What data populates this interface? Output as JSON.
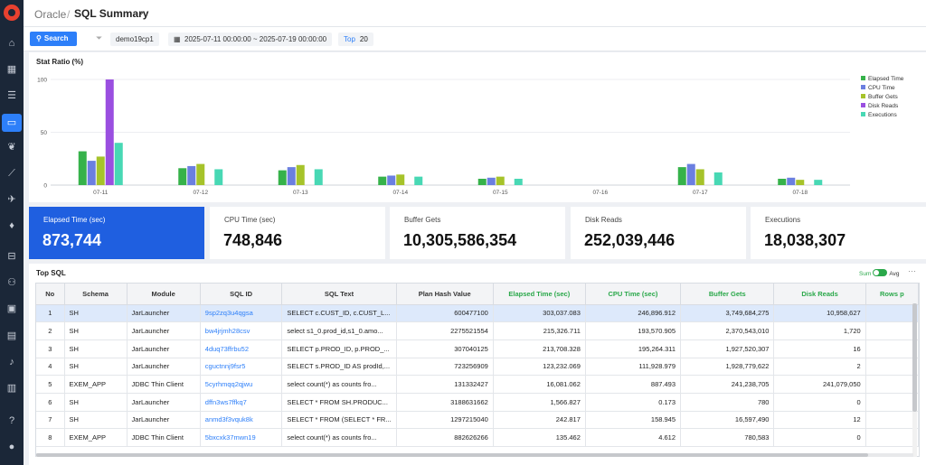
{
  "header": {
    "root": "Oracle",
    "separator": "/",
    "page_title": "SQL Summary"
  },
  "toolbar": {
    "search_label": "Search",
    "database": "demo19cp1",
    "date_range": "2025-07-11 00:00:00 ~ 2025-07-19 00:00:00",
    "top_label": "Top",
    "top_value": "20"
  },
  "chart_panel": {
    "title": "Stat Ratio (%)"
  },
  "chart_data": {
    "type": "bar",
    "categories": [
      "07-11",
      "07-12",
      "07-13",
      "07-14",
      "07-15",
      "07-16",
      "07-17",
      "07-18"
    ],
    "y_ticks": [
      "0",
      "50",
      "100"
    ],
    "ylim": [
      0,
      100
    ],
    "grid": true,
    "legend_position": "right",
    "series": [
      {
        "name": "Elapsed Time",
        "color": "#36b24a",
        "values": [
          32,
          16,
          14,
          8,
          6,
          0,
          17,
          6
        ]
      },
      {
        "name": "CPU Time",
        "color": "#6b7fe0",
        "values": [
          23,
          18,
          17,
          9,
          7,
          0,
          20,
          7
        ]
      },
      {
        "name": "Buffer Gets",
        "color": "#a6c32a",
        "values": [
          27,
          20,
          19,
          10,
          8,
          0,
          15,
          5
        ]
      },
      {
        "name": "Disk Reads",
        "color": "#9a4fe0",
        "values": [
          100,
          0,
          0,
          0,
          0,
          0,
          0,
          0
        ]
      },
      {
        "name": "Executions",
        "color": "#48d8b4",
        "values": [
          40,
          15,
          15,
          8,
          6,
          0,
          12,
          5
        ]
      }
    ]
  },
  "cards": [
    {
      "label": "Elapsed Time (sec)",
      "value": "873,744",
      "active": true
    },
    {
      "label": "CPU Time (sec)",
      "value": "748,846",
      "active": false
    },
    {
      "label": "Buffer Gets",
      "value": "10,305,586,354",
      "active": false
    },
    {
      "label": "Disk Reads",
      "value": "252,039,446",
      "active": false
    },
    {
      "label": "Executions",
      "value": "18,038,307",
      "active": false
    }
  ],
  "top_sql": {
    "title": "Top SQL",
    "sum_label": "Sum",
    "avg_label": "Avg",
    "more_label": "···",
    "columns": [
      "No",
      "Schema",
      "Module",
      "SQL ID",
      "SQL Text",
      "Plan Hash Value",
      "Elapsed Time (sec)",
      "CPU Time (sec)",
      "Buffer Gets",
      "Disk Reads",
      "Rows p"
    ],
    "rows": [
      [
        "1",
        "SH",
        "JarLauncher",
        "9sp2zq3u4qgsa",
        "SELECT c.CUST_ID, c.CUST_L...",
        "600477100",
        "303,037.083",
        "246,896.912",
        "3,749,684,275",
        "10,958,627",
        ""
      ],
      [
        "2",
        "SH",
        "JarLauncher",
        "bw4jrjmh28csv",
        "select s1_0.prod_id,s1_0.amo...",
        "2275521554",
        "215,326.711",
        "193,570.905",
        "2,370,543,010",
        "1,720",
        ""
      ],
      [
        "3",
        "SH",
        "JarLauncher",
        "4duq73ffrbu52",
        "SELECT p.PROD_ID, p.PROD_...",
        "307040125",
        "213,708.328",
        "195,264.311",
        "1,927,520,307",
        "16",
        ""
      ],
      [
        "4",
        "SH",
        "JarLauncher",
        "cguctnnj9fsr5",
        "SELECT s.PROD_ID AS prodId,...",
        "723256909",
        "123,232.069",
        "111,928.979",
        "1,928,779,622",
        "2",
        ""
      ],
      [
        "5",
        "EXEM_APP",
        "JDBC Thin Client",
        "5cyrhmqq2qjwu",
        "select count(*) as counts fro...",
        "131332427",
        "16,081.062",
        "887.493",
        "241,238,705",
        "241,079,050",
        ""
      ],
      [
        "6",
        "SH",
        "JarLauncher",
        "dffn3ws7ffkq7",
        "SELECT * FROM SH.PRODUC...",
        "3188631662",
        "1,566.827",
        "0.173",
        "780",
        "0",
        ""
      ],
      [
        "7",
        "SH",
        "JarLauncher",
        "anmd3f3vquk8k",
        "SELECT * FROM (SELECT * FR...",
        "1297215040",
        "242.817",
        "158.945",
        "16,597,490",
        "12",
        ""
      ],
      [
        "8",
        "EXEM_APP",
        "JDBC Thin Client",
        "5bxcxk37mwn19",
        "select count(*) as counts fro...",
        "882626266",
        "135.462",
        "4.612",
        "780,583",
        "0",
        ""
      ]
    ]
  }
}
